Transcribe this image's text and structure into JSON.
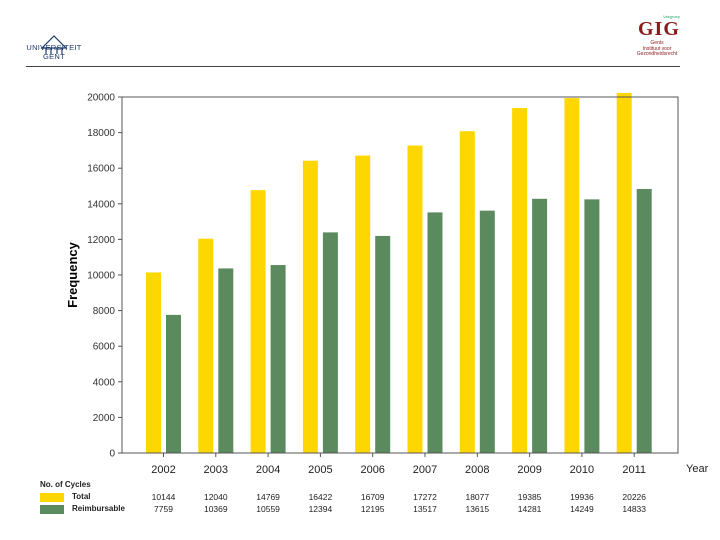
{
  "header": {
    "left_logo": {
      "line1": "UNIVERSITEIT",
      "line2": "GENT"
    },
    "right_logo": {
      "small": "Vakgroep",
      "letters": "GIG",
      "sub1": "Gents",
      "sub2": "Instituut voor",
      "sub3": "Gezondheidsrecht"
    }
  },
  "chart_data": {
    "type": "bar",
    "categories": [
      "2002",
      "2003",
      "2004",
      "2005",
      "2006",
      "2007",
      "2008",
      "2009",
      "2010",
      "2011"
    ],
    "series": [
      {
        "name": "Total",
        "color": "#FFD700",
        "values": [
          10144,
          12040,
          14769,
          16422,
          16709,
          17272,
          18077,
          19385,
          19936,
          20226
        ]
      },
      {
        "name": "Reimbursable",
        "color": "#5B8A5F",
        "values": [
          7759,
          10369,
          10559,
          12394,
          12195,
          13517,
          13615,
          14281,
          14249,
          14833
        ]
      }
    ],
    "ylabel": "Frequency",
    "xlabel": "Year",
    "ylim": [
      0,
      20000
    ],
    "yticks": [
      0,
      2000,
      4000,
      6000,
      8000,
      10000,
      12000,
      14000,
      16000,
      18000,
      20000
    ],
    "legend_title": "No. of Cycles"
  }
}
